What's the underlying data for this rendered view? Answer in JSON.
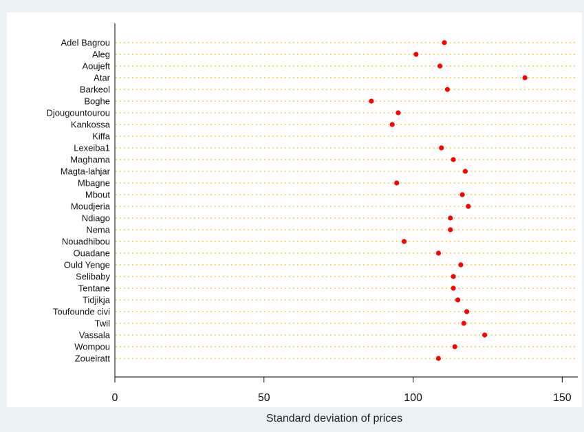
{
  "chart_data": {
    "type": "scatter",
    "subtype": "dot-plot",
    "title": "",
    "xlabel": "Standard deviation of prices",
    "ylabel": "",
    "xlim": [
      0,
      155
    ],
    "xticks": [
      0,
      50,
      100,
      150
    ],
    "grid": "dotted horizontal guide line per category",
    "legend": "none",
    "categories": [
      "Adel Bagrou",
      "Aleg",
      "Aoujeft",
      "Atar",
      "Barkeol",
      "Boghe",
      "Djougountourou",
      "Kankossa",
      "Kiffa",
      "Lexeiba1",
      "Maghama",
      "Magta-lahjar",
      "Mbagne",
      "Mbout",
      "Moudjeria",
      "Ndiago",
      "Nema",
      "Nouadhibou",
      "Ouadane",
      "Ould Yenge",
      "Selibaby",
      "Tentane",
      "Tidjikja",
      "Toufounde civi",
      "Twil",
      "Vassala",
      "Wompou",
      "Zoueiratt"
    ],
    "series": [
      {
        "values": [
          110.5,
          101,
          109,
          137.5,
          111.5,
          86,
          95,
          93,
          null,
          109.5,
          113.5,
          117.5,
          94.5,
          116.5,
          118.5,
          112.5,
          112.5,
          97,
          108.5,
          116,
          113.5,
          113.5,
          115,
          118,
          117,
          124,
          114,
          108.5
        ],
        "color": "#ff0000"
      }
    ],
    "colors": {
      "plot_background": "#ffffff",
      "page_background": "#eaf2f3",
      "guide_line": "#f2c010",
      "marker": "#ff0000",
      "axis": "#000000"
    }
  }
}
